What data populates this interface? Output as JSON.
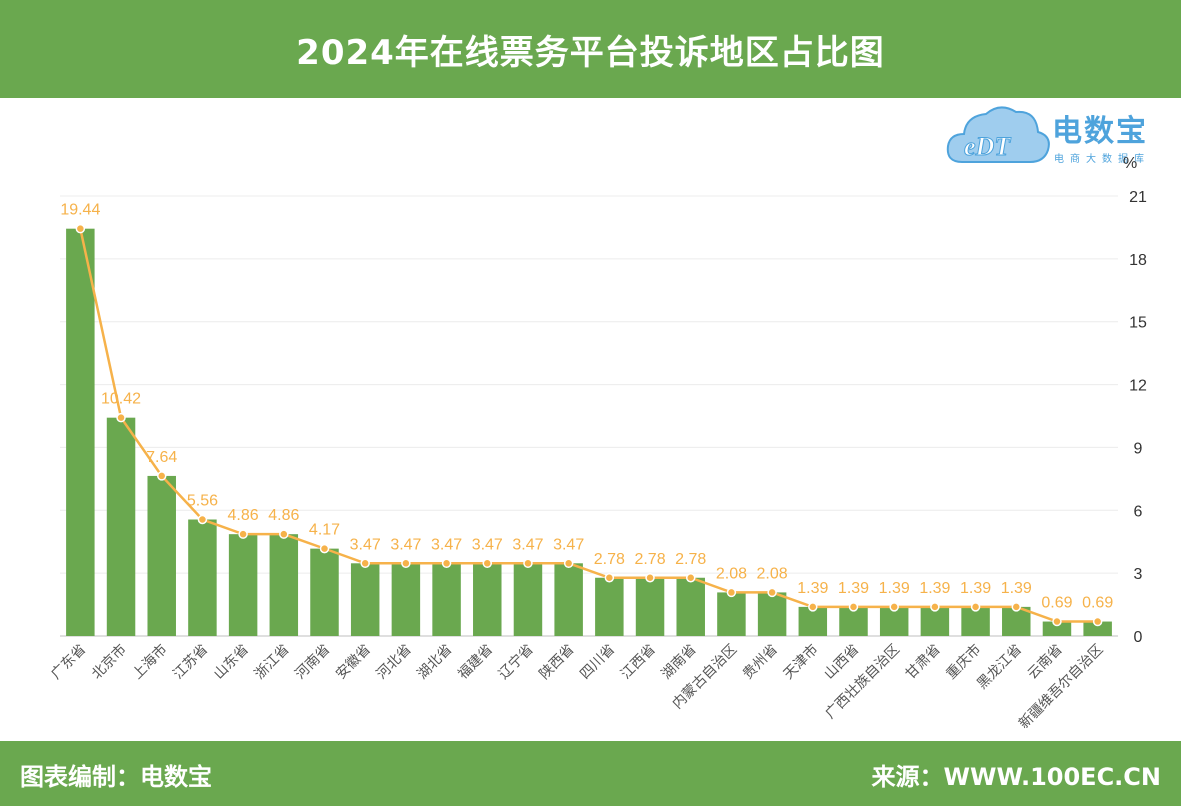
{
  "header": {
    "title": "2024年在线票务平台投诉地区占比图"
  },
  "logo": {
    "mark": "eDT",
    "name": "电数宝",
    "subtitle": "电商大数据库"
  },
  "footer": {
    "left": "图表编制：电数宝",
    "right": "来源：WWW.100EC.CN"
  },
  "colors": {
    "bar": "#6aa84f",
    "line": "#f6b24a",
    "label": "#f6b24a",
    "header": "#6aa84f",
    "logo": "#4ea3dc"
  },
  "chart_data": {
    "type": "bar",
    "title": "2024年在线票务平台投诉地区占比图",
    "ylabel": "%",
    "ylim": [
      0,
      21
    ],
    "yticks": [
      0,
      3,
      6,
      9,
      12,
      15,
      18,
      21
    ],
    "y_axis_side": "right",
    "grid": true,
    "categories": [
      "广东省",
      "北京市",
      "上海市",
      "江苏省",
      "山东省",
      "浙江省",
      "河南省",
      "安徽省",
      "河北省",
      "湖北省",
      "福建省",
      "辽宁省",
      "陕西省",
      "四川省",
      "江西省",
      "湖南省",
      "内蒙古自治区",
      "贵州省",
      "天津市",
      "山西省",
      "广西壮族自治区",
      "甘肃省",
      "重庆市",
      "黑龙江省",
      "云南省",
      "新疆维吾尔自治区"
    ],
    "values": [
      19.44,
      10.42,
      7.64,
      5.56,
      4.86,
      4.86,
      4.17,
      3.47,
      3.47,
      3.47,
      3.47,
      3.47,
      3.47,
      2.78,
      2.78,
      2.78,
      2.08,
      2.08,
      1.39,
      1.39,
      1.39,
      1.39,
      1.39,
      1.39,
      0.69,
      0.69
    ],
    "labels": [
      "19.44",
      "10.42",
      "7.64",
      "5.56",
      "4.86",
      "4.86",
      "4.17",
      "3.47",
      "3.47",
      "3.47",
      "3.47",
      "3.47",
      "3.47",
      "2.78",
      "2.78",
      "2.78",
      "2.08",
      "2.08",
      "1.39",
      "1.39",
      "1.39",
      "1.39",
      "1.39",
      "1.39",
      "0.69",
      "0.69"
    ],
    "overlay": "line through bar tops with circular markers"
  }
}
